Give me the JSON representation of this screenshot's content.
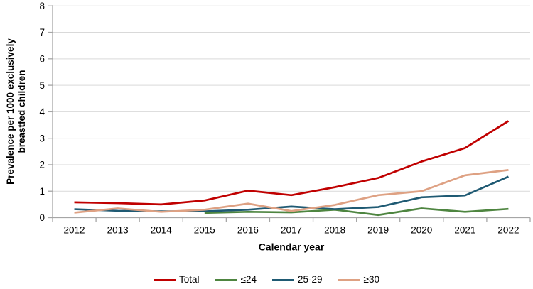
{
  "chart_data": {
    "type": "line",
    "title": "",
    "xlabel": "Calendar year",
    "ylabel": "Prevalence per 1000 exclusively breastfed children",
    "ylabel_lines": [
      "Prevalence per 1000 exclusively",
      "breastfed children"
    ],
    "x_labels": [
      "2012",
      "2013",
      "2014",
      "2015",
      "2016",
      "2017",
      "2018",
      "2019",
      "2020",
      "2021",
      "2022"
    ],
    "y_tick_labels": [
      "0",
      "1",
      "2",
      "3",
      "4",
      "5",
      "6",
      "7",
      "8"
    ],
    "y_ticks": [
      0,
      1,
      2,
      3,
      4,
      5,
      6,
      7,
      8
    ],
    "ylim": [
      0,
      8
    ],
    "grid": "horizontal",
    "legend_position": "bottom",
    "series": [
      {
        "name": "Total",
        "color": "#C00000",
        "values": [
          0.58,
          0.55,
          0.5,
          0.65,
          1.02,
          0.85,
          1.15,
          1.5,
          2.12,
          2.63,
          3.65
        ]
      },
      {
        "name": "≤24",
        "color": "#4E8540",
        "values": [
          null,
          null,
          null,
          0.18,
          0.22,
          0.2,
          0.3,
          0.1,
          0.35,
          0.22,
          0.33
        ]
      },
      {
        "name": "25-29",
        "color": "#1F5A73",
        "values": [
          0.32,
          0.26,
          0.24,
          0.24,
          0.3,
          0.42,
          0.32,
          0.4,
          0.77,
          0.84,
          1.55
        ]
      },
      {
        "name": "≥30",
        "color": "#DEA183",
        "values": [
          0.19,
          0.35,
          0.22,
          0.3,
          0.53,
          0.25,
          0.48,
          0.85,
          1.0,
          1.6,
          1.8
        ]
      }
    ],
    "colors": {
      "gridline": "#D9D9D9",
      "axis": "#A6A6A6",
      "text": "#000000"
    }
  }
}
